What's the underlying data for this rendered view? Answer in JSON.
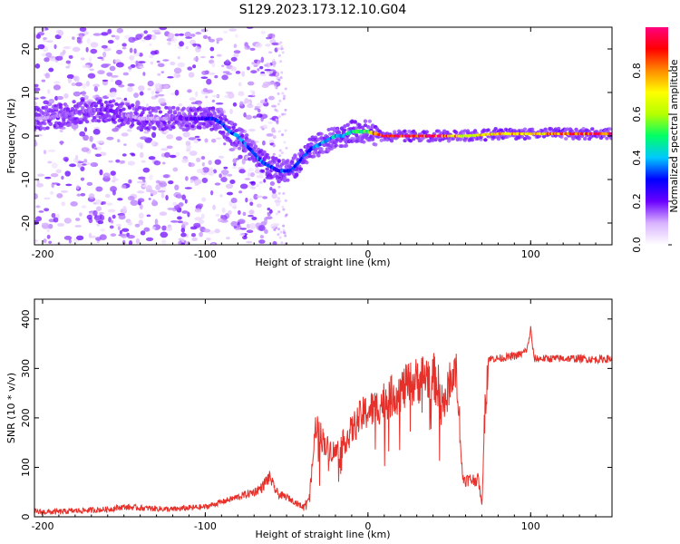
{
  "figure": {
    "title": "S129.2023.173.12.10.G04"
  },
  "chart_data": [
    {
      "type": "heatmap",
      "xlabel": "Height of straight line (km)",
      "ylabel": "Frequency (Hz)",
      "xlim": [
        -205,
        150
      ],
      "ylim": [
        -25,
        25
      ],
      "xticks": [
        -200,
        -100,
        0,
        100
      ],
      "yticks": [
        -20,
        -10,
        0,
        10,
        20
      ],
      "colorbar": {
        "label": "Normalized spectral amplitude",
        "range": [
          0,
          1
        ],
        "ticks": [
          "0.0",
          "0.2",
          "0.4",
          "0.6",
          "0.8"
        ],
        "colors": [
          "#ffffff",
          "#d9b3ff",
          "#6a00ff",
          "#0000ff",
          "#00c8ff",
          "#00ff66",
          "#b4ff00",
          "#ffff00",
          "#ff8c00",
          "#ff0000",
          "#ff007f"
        ]
      },
      "ridge": {
        "x": [
          -200,
          -185,
          -170,
          -160,
          -150,
          -140,
          -130,
          -120,
          -110,
          -100,
          -95,
          -90,
          -85,
          -80,
          -75,
          -70,
          -65,
          -60,
          -55,
          -50,
          -47,
          -45,
          -40,
          -35,
          -30,
          -25,
          -20,
          -15,
          -10,
          -5,
          0,
          5,
          10,
          20,
          40,
          60,
          80,
          100,
          120,
          150
        ],
        "y": [
          4,
          5,
          6,
          6,
          5,
          4,
          4,
          4,
          4,
          4,
          4,
          3,
          1,
          0,
          -2,
          -4,
          -6,
          -7,
          -8,
          -8,
          -8,
          -7,
          -5,
          -3,
          -2,
          -1,
          0,
          0,
          1,
          1,
          1,
          0.5,
          0,
          0,
          0,
          0,
          0.5,
          0.5,
          0.5,
          0.5
        ],
        "amplitude": [
          0.1,
          0.15,
          0.15,
          0.2,
          0.15,
          0.1,
          0.1,
          0.15,
          0.2,
          0.25,
          0.3,
          0.3,
          0.35,
          0.35,
          0.35,
          0.4,
          0.35,
          0.3,
          0.3,
          0.35,
          0.35,
          0.3,
          0.3,
          0.35,
          0.35,
          0.4,
          0.4,
          0.45,
          0.45,
          0.5,
          0.55,
          0.9,
          0.95,
          0.95,
          0.95,
          0.7,
          0.75,
          0.75,
          0.85,
          0.9
        ]
      }
    },
    {
      "type": "line",
      "xlabel": "Height of straight line (km)",
      "ylabel": "SNR (10 * v/v)",
      "xlim": [
        -205,
        150
      ],
      "ylim": [
        0,
        440
      ],
      "xticks": [
        -200,
        -100,
        0,
        100
      ],
      "yticks": [
        0,
        100,
        200,
        300,
        400
      ],
      "color": "#e8302a",
      "series": [
        {
          "x": [
            -205,
            -190,
            -180,
            -160,
            -150,
            -140,
            -120,
            -110,
            -100,
            -95,
            -90,
            -85,
            -80,
            -75,
            -70,
            -65,
            -62,
            -60,
            -58,
            -55,
            -50,
            -45,
            -40,
            -36,
            -34,
            -32,
            -30,
            -25,
            -20,
            -15,
            -10,
            -5,
            0,
            5,
            10,
            15,
            20,
            25,
            30,
            35,
            40,
            45,
            48,
            50,
            52,
            55,
            58,
            60,
            62,
            65,
            68,
            70,
            72,
            74,
            80,
            90,
            95,
            98,
            100,
            102,
            110,
            120,
            130,
            140,
            150
          ],
          "y": [
            10,
            10,
            12,
            15,
            20,
            18,
            15,
            18,
            20,
            25,
            30,
            35,
            40,
            45,
            50,
            60,
            75,
            80,
            60,
            45,
            40,
            30,
            20,
            40,
            110,
            190,
            170,
            140,
            130,
            150,
            175,
            200,
            215,
            220,
            235,
            245,
            255,
            265,
            275,
            285,
            285,
            250,
            220,
            280,
            290,
            280,
            80,
            75,
            75,
            75,
            75,
            20,
            230,
            320,
            320,
            325,
            330,
            340,
            380,
            320,
            320,
            320,
            320,
            318,
            320
          ]
        }
      ]
    }
  ]
}
